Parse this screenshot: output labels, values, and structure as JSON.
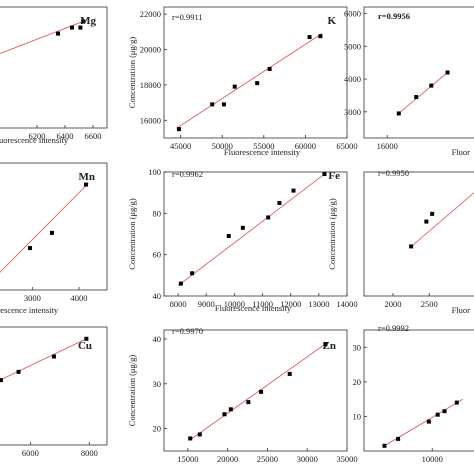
{
  "chart_data": [
    {
      "type": "scatter",
      "element": "Mg",
      "r_label": "",
      "xlabel": "Fluorescence intensity",
      "ylabel": "",
      "xlim": [
        5900,
        6700
      ],
      "ylim": [
        0,
        100
      ],
      "xticks": [
        6200,
        6400,
        6600
      ],
      "yticks": [],
      "x": [
        6350,
        6450,
        6510,
        6530
      ],
      "y": [
        78,
        83,
        83,
        88
      ],
      "fit": {
        "x": [
          5900,
          6550
        ],
        "y": [
          60,
          89
        ]
      }
    },
    {
      "type": "scatter",
      "element": "K",
      "r_label": "r=0.9911",
      "xlabel": "Fluorescence intensity",
      "ylabel": "Concentration (μg/g)",
      "xlim": [
        43000,
        65000
      ],
      "ylim": [
        15000,
        22400
      ],
      "xticks": [
        45000,
        50000,
        55000,
        60000,
        65000
      ],
      "yticks": [
        16000,
        18000,
        20000,
        22000
      ],
      "x": [
        44800,
        48800,
        50200,
        51500,
        54200,
        55700,
        60500,
        61800
      ],
      "y": [
        15500,
        16900,
        16900,
        17900,
        18100,
        18900,
        20700,
        20750
      ],
      "fit": {
        "x": [
          44500,
          62000
        ],
        "y": [
          15550,
          20900
        ]
      }
    },
    {
      "type": "scatter",
      "element": "",
      "r_label": "r=0.9956",
      "xlabel": "Fluor",
      "ylabel": "",
      "xlim": [
        14000,
        24000
      ],
      "ylim": [
        2200,
        6200
      ],
      "xticks": [
        16000
      ],
      "yticks": [
        3000,
        4000,
        5000,
        6000
      ],
      "x": [
        17000,
        18500,
        19800,
        21200
      ],
      "y": [
        2950,
        3450,
        3800,
        4200
      ],
      "fit": {
        "x": [
          17000,
          21300
        ],
        "y": [
          2950,
          4230
        ]
      }
    },
    {
      "type": "scatter",
      "element": "Mn",
      "r_label": "",
      "xlabel": "Fluorescence intensity",
      "ylabel": "",
      "xlim": [
        2200,
        4600
      ],
      "ylim": [
        0,
        100
      ],
      "xticks": [
        3000,
        4000
      ],
      "yticks": [],
      "x": [
        2950,
        3420,
        4150
      ],
      "y": [
        33,
        45,
        83
      ],
      "fit": {
        "x": [
          2200,
          4200
        ],
        "y": [
          10,
          84
        ]
      }
    },
    {
      "type": "scatter",
      "element": "Fe",
      "r_label": "r=0.9962",
      "xlabel": "Fluorescence intensity",
      "ylabel": "Concentration (μg/g)",
      "xlim": [
        7500,
        14000
      ],
      "ylim": [
        40,
        100
      ],
      "xticks": [
        8000,
        9000,
        10000,
        11000,
        12000,
        13000,
        14000
      ],
      "yticks": [
        40,
        60,
        80,
        100
      ],
      "x": [
        8100,
        8500,
        9800,
        10300,
        11200,
        11600,
        12100,
        13200
      ],
      "y": [
        46,
        51,
        69,
        73,
        78,
        85,
        91,
        99
      ],
      "fit": {
        "x": [
          8000,
          13200
        ],
        "y": [
          45,
          99
        ]
      }
    },
    {
      "type": "scatter",
      "element": "",
      "r_label": "r=0.9950",
      "xlabel": "Fluor",
      "ylabel": "Concentration (μg/g)",
      "xlim": [
        1600,
        3200
      ],
      "ylim": [
        0,
        8
      ],
      "xticks": [
        2000,
        2500
      ],
      "yticks": [],
      "x": [
        2250,
        2460,
        2540
      ],
      "y": [
        3.2,
        4.8,
        5.3
      ],
      "fit": {
        "x": [
          2230,
          3200
        ],
        "y": [
          3.1,
          7.0
        ]
      }
    },
    {
      "type": "scatter",
      "element": "Cu",
      "r_label": "",
      "xlabel": "",
      "ylabel": "",
      "xlim": [
        4800,
        8600
      ],
      "ylim": [
        0,
        100
      ],
      "xticks": [
        6000,
        8000
      ],
      "yticks": [],
      "x": [
        5000,
        5600,
        6800,
        7900
      ],
      "y": [
        55,
        62,
        75,
        90
      ],
      "fit": {
        "x": [
          4800,
          7900
        ],
        "y": [
          53,
          90
        ]
      }
    },
    {
      "type": "scatter",
      "element": "Zn",
      "r_label": "r=0.9970",
      "xlabel": "",
      "ylabel": "Concentration (μg/g)",
      "xlim": [
        12000,
        35000
      ],
      "ylim": [
        15,
        42
      ],
      "xticks": [
        15000,
        20000,
        25000,
        30000,
        35000
      ],
      "yticks": [
        20,
        30,
        40
      ],
      "x": [
        15300,
        16500,
        19600,
        20400,
        22600,
        24200,
        27800,
        32300
      ],
      "y": [
        17.8,
        18.7,
        23.2,
        24.3,
        25.9,
        28.2,
        32.2,
        38.8
      ],
      "fit": {
        "x": [
          15200,
          32300
        ],
        "y": [
          17.4,
          38.9
        ]
      }
    },
    {
      "type": "scatter",
      "element": "",
      "r_label": "r=0.9992",
      "xlabel": "",
      "ylabel": "",
      "xlim": [
        0,
        17000
      ],
      "ylim": [
        0,
        35
      ],
      "xticks": [
        10000
      ],
      "yticks": [
        10,
        20,
        30
      ],
      "x": [
        3000,
        5000,
        9500,
        10800,
        11800,
        13600
      ],
      "y": [
        1.5,
        3.5,
        8.5,
        10.5,
        11.5,
        14
      ],
      "fit": {
        "x": [
          3000,
          14500
        ],
        "y": [
          1.5,
          15
        ]
      }
    }
  ]
}
